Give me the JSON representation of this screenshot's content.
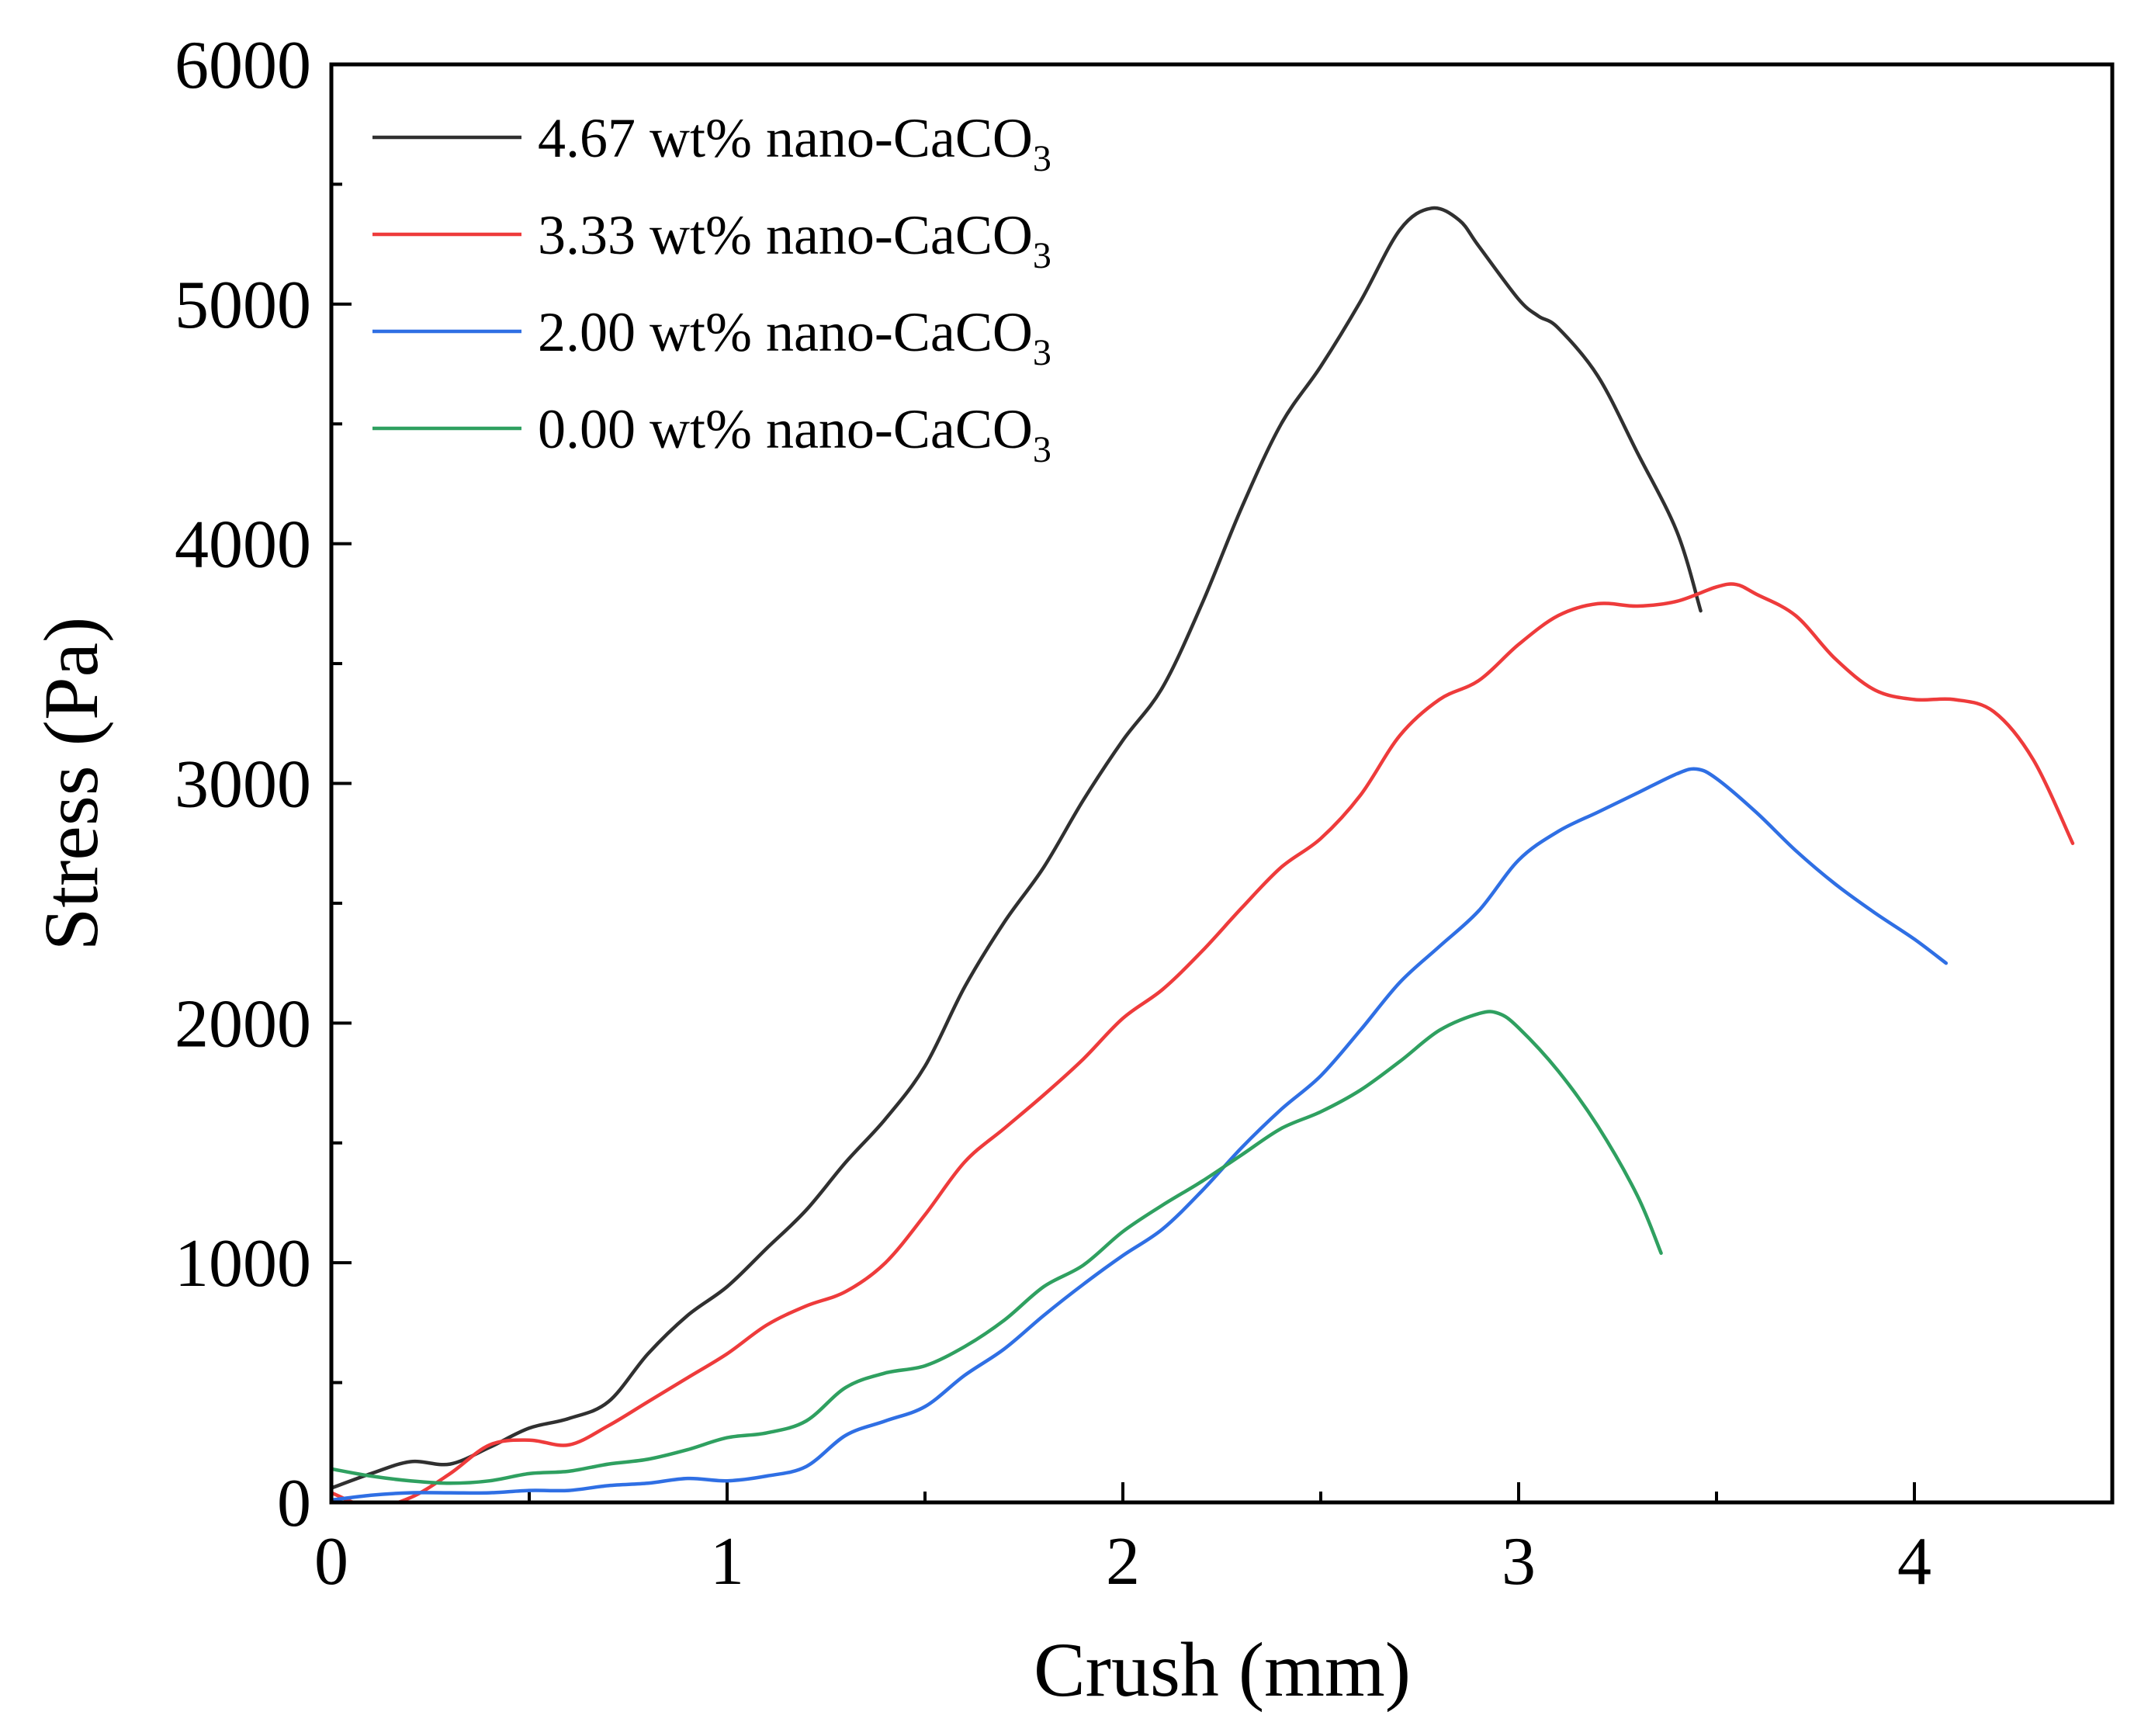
{
  "chart_data": {
    "type": "line",
    "title": "",
    "xlabel": "Crush (mm)",
    "ylabel": "Stress (Pa)",
    "xlim": [
      0,
      4.5
    ],
    "ylim": [
      0,
      6000
    ],
    "xticks": [
      0,
      1,
      2,
      3,
      4
    ],
    "xtick_labels": [
      "0",
      "1",
      "2",
      "3",
      "4"
    ],
    "yticks": [
      0,
      1000,
      2000,
      3000,
      4000,
      5000,
      6000
    ],
    "ytick_labels": [
      "0",
      "1000",
      "2000",
      "3000",
      "4000",
      "5000",
      "6000"
    ],
    "legend_position": "top-left",
    "series": [
      {
        "name": "4.67 wt% nano-CaCO3",
        "label_main": "4.67 wt% nano-CaCO",
        "label_sub": "3",
        "color": "#303030",
        "points": [
          [
            0,
            60
          ],
          [
            0.1,
            120
          ],
          [
            0.2,
            170
          ],
          [
            0.3,
            160
          ],
          [
            0.4,
            230
          ],
          [
            0.5,
            310
          ],
          [
            0.6,
            350
          ],
          [
            0.7,
            420
          ],
          [
            0.8,
            620
          ],
          [
            0.9,
            780
          ],
          [
            1.0,
            900
          ],
          [
            1.1,
            1060
          ],
          [
            1.2,
            1220
          ],
          [
            1.3,
            1420
          ],
          [
            1.4,
            1600
          ],
          [
            1.5,
            1820
          ],
          [
            1.6,
            2150
          ],
          [
            1.7,
            2420
          ],
          [
            1.8,
            2650
          ],
          [
            1.9,
            2930
          ],
          [
            2.0,
            3180
          ],
          [
            2.1,
            3400
          ],
          [
            2.2,
            3750
          ],
          [
            2.3,
            4150
          ],
          [
            2.4,
            4500
          ],
          [
            2.5,
            4740
          ],
          [
            2.6,
            5010
          ],
          [
            2.7,
            5310
          ],
          [
            2.78,
            5400
          ],
          [
            2.85,
            5350
          ],
          [
            2.9,
            5240
          ],
          [
            3.0,
            5020
          ],
          [
            3.05,
            4950
          ],
          [
            3.1,
            4900
          ],
          [
            3.2,
            4700
          ],
          [
            3.3,
            4380
          ],
          [
            3.4,
            4050
          ],
          [
            3.46,
            3720
          ]
        ]
      },
      {
        "name": "3.33 wt% nano-CaCO3",
        "label_main": "3.33 wt% nano-CaCO",
        "label_sub": "3",
        "color": "#ee3b3b",
        "points": [
          [
            0,
            40
          ],
          [
            0.1,
            -20
          ],
          [
            0.2,
            20
          ],
          [
            0.3,
            120
          ],
          [
            0.4,
            240
          ],
          [
            0.5,
            260
          ],
          [
            0.6,
            240
          ],
          [
            0.7,
            320
          ],
          [
            0.8,
            420
          ],
          [
            0.9,
            520
          ],
          [
            1.0,
            620
          ],
          [
            1.1,
            740
          ],
          [
            1.2,
            820
          ],
          [
            1.3,
            880
          ],
          [
            1.4,
            1000
          ],
          [
            1.5,
            1200
          ],
          [
            1.6,
            1420
          ],
          [
            1.7,
            1560
          ],
          [
            1.8,
            1700
          ],
          [
            1.9,
            1850
          ],
          [
            2.0,
            2020
          ],
          [
            2.1,
            2140
          ],
          [
            2.2,
            2300
          ],
          [
            2.3,
            2480
          ],
          [
            2.4,
            2650
          ],
          [
            2.5,
            2770
          ],
          [
            2.6,
            2950
          ],
          [
            2.7,
            3200
          ],
          [
            2.8,
            3350
          ],
          [
            2.9,
            3430
          ],
          [
            3.0,
            3580
          ],
          [
            3.1,
            3700
          ],
          [
            3.2,
            3750
          ],
          [
            3.3,
            3740
          ],
          [
            3.4,
            3760
          ],
          [
            3.5,
            3820
          ],
          [
            3.55,
            3830
          ],
          [
            3.6,
            3790
          ],
          [
            3.7,
            3700
          ],
          [
            3.8,
            3520
          ],
          [
            3.9,
            3390
          ],
          [
            4.0,
            3350
          ],
          [
            4.1,
            3350
          ],
          [
            4.2,
            3300
          ],
          [
            4.3,
            3100
          ],
          [
            4.4,
            2750
          ]
        ]
      },
      {
        "name": "2.00 wt% nano-CaCO3",
        "label_main": "2.00 wt% nano-CaCO",
        "label_sub": "3",
        "color": "#2f6fe4",
        "points": [
          [
            0,
            10
          ],
          [
            0.1,
            30
          ],
          [
            0.2,
            40
          ],
          [
            0.3,
            40
          ],
          [
            0.4,
            40
          ],
          [
            0.5,
            50
          ],
          [
            0.6,
            50
          ],
          [
            0.7,
            70
          ],
          [
            0.8,
            80
          ],
          [
            0.9,
            100
          ],
          [
            1.0,
            90
          ],
          [
            1.1,
            110
          ],
          [
            1.2,
            150
          ],
          [
            1.3,
            280
          ],
          [
            1.4,
            340
          ],
          [
            1.5,
            400
          ],
          [
            1.6,
            530
          ],
          [
            1.7,
            640
          ],
          [
            1.8,
            780
          ],
          [
            1.9,
            910
          ],
          [
            2.0,
            1030
          ],
          [
            2.1,
            1140
          ],
          [
            2.2,
            1300
          ],
          [
            2.3,
            1480
          ],
          [
            2.4,
            1640
          ],
          [
            2.5,
            1780
          ],
          [
            2.6,
            1970
          ],
          [
            2.7,
            2170
          ],
          [
            2.8,
            2320
          ],
          [
            2.9,
            2470
          ],
          [
            3.0,
            2680
          ],
          [
            3.1,
            2800
          ],
          [
            3.2,
            2880
          ],
          [
            3.3,
            2960
          ],
          [
            3.4,
            3040
          ],
          [
            3.45,
            3060
          ],
          [
            3.5,
            3020
          ],
          [
            3.6,
            2880
          ],
          [
            3.7,
            2720
          ],
          [
            3.8,
            2580
          ],
          [
            3.9,
            2460
          ],
          [
            4.0,
            2350
          ],
          [
            4.08,
            2250
          ]
        ]
      },
      {
        "name": "0.00 wt% nano-CaCO3",
        "label_main": "0.00 wt% nano-CaCO",
        "label_sub": "3",
        "color": "#2fa060",
        "points": [
          [
            0,
            140
          ],
          [
            0.1,
            110
          ],
          [
            0.2,
            90
          ],
          [
            0.3,
            80
          ],
          [
            0.4,
            90
          ],
          [
            0.5,
            120
          ],
          [
            0.6,
            130
          ],
          [
            0.7,
            160
          ],
          [
            0.8,
            180
          ],
          [
            0.9,
            220
          ],
          [
            1.0,
            270
          ],
          [
            1.1,
            290
          ],
          [
            1.2,
            340
          ],
          [
            1.3,
            480
          ],
          [
            1.4,
            540
          ],
          [
            1.5,
            570
          ],
          [
            1.6,
            650
          ],
          [
            1.7,
            760
          ],
          [
            1.8,
            900
          ],
          [
            1.9,
            990
          ],
          [
            2.0,
            1130
          ],
          [
            2.1,
            1240
          ],
          [
            2.2,
            1340
          ],
          [
            2.3,
            1450
          ],
          [
            2.4,
            1560
          ],
          [
            2.5,
            1630
          ],
          [
            2.6,
            1720
          ],
          [
            2.7,
            1840
          ],
          [
            2.8,
            1970
          ],
          [
            2.9,
            2040
          ],
          [
            2.95,
            2040
          ],
          [
            3.0,
            1980
          ],
          [
            3.1,
            1800
          ],
          [
            3.2,
            1570
          ],
          [
            3.3,
            1280
          ],
          [
            3.36,
            1040
          ]
        ]
      }
    ]
  }
}
